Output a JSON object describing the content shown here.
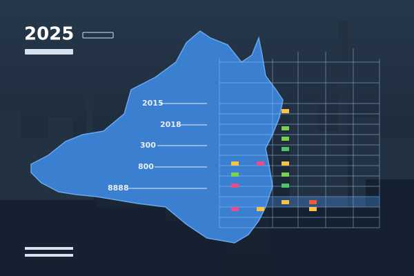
{
  "header": {
    "year": "2025"
  },
  "map": {
    "labels": [
      "2015",
      "2018",
      "300",
      "800",
      "8888"
    ]
  }
}
